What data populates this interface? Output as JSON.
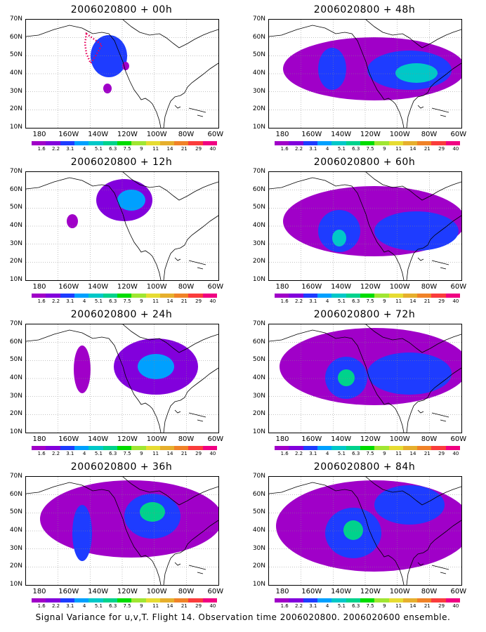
{
  "caption": "Signal Variance for u,v,T. Flight 14. Observation time 2006020800. 2006020600 ensemble.",
  "axes": {
    "lat_labels": [
      "70N",
      "60N",
      "50N",
      "40N",
      "30N",
      "20N",
      "10N"
    ],
    "lon_labels": [
      "180",
      "160W",
      "140W",
      "120W",
      "100W",
      "80W",
      "60W"
    ]
  },
  "colorbar": {
    "labels": [
      "1.6",
      "2.2",
      "3.1",
      "4",
      "5.1",
      "6.3",
      "7.5",
      "9",
      "11",
      "14",
      "21",
      "29",
      "40"
    ],
    "colors": [
      "#a000c8",
      "#8200dc",
      "#1e3cff",
      "#00a0ff",
      "#00c8c8",
      "#00d28c",
      "#00dc00",
      "#a0e632",
      "#e6dc32",
      "#e6af2d",
      "#f08228",
      "#fa3c3c",
      "#f00082"
    ]
  },
  "panels": [
    {
      "title": "2006020800 + 00h",
      "forecast_hour": "00h"
    },
    {
      "title": "2006020800 + 48h",
      "forecast_hour": "48h"
    },
    {
      "title": "2006020800 + 12h",
      "forecast_hour": "12h"
    },
    {
      "title": "2006020800 + 60h",
      "forecast_hour": "60h"
    },
    {
      "title": "2006020800 + 24h",
      "forecast_hour": "24h"
    },
    {
      "title": "2006020800 + 72h",
      "forecast_hour": "72h"
    },
    {
      "title": "2006020800 + 36h",
      "forecast_hour": "36h"
    },
    {
      "title": "2006020800 + 84h",
      "forecast_hour": "84h"
    }
  ]
}
